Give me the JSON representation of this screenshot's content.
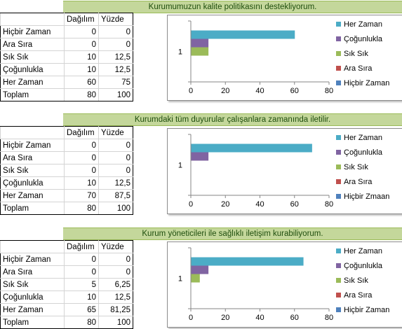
{
  "sections": [
    {
      "title": "Kurumumuzun kalite politikasını destekliyorum.",
      "headers": [
        "Dağılım",
        "Yüzde"
      ],
      "rows": [
        {
          "label": "Hiçbir Zaman",
          "count": "0",
          "pct": "0"
        },
        {
          "label": "Ara Sıra",
          "count": "0",
          "pct": "0"
        },
        {
          "label": "Sık Sık",
          "count": "10",
          "pct": "12,5"
        },
        {
          "label": "Çoğunlukla",
          "count": "10",
          "pct": "12,5"
        },
        {
          "label": "Her Zaman",
          "count": "60",
          "pct": "75"
        },
        {
          "label": "Toplam",
          "count": "80",
          "pct": "100"
        }
      ]
    },
    {
      "title": "Kurumdaki tüm duyurular çalışanlara zamanında iletilir.",
      "headers": [
        "Dağılım",
        "Yüzde"
      ],
      "rows": [
        {
          "label": "Hiçbir Zaman",
          "count": "0",
          "pct": "0"
        },
        {
          "label": "Ara Sıra",
          "count": "0",
          "pct": "0"
        },
        {
          "label": "Sık Sık",
          "count": "0",
          "pct": "0"
        },
        {
          "label": "Çoğunlukla",
          "count": "10",
          "pct": "12,5"
        },
        {
          "label": "Her Zaman",
          "count": "70",
          "pct": "87,5"
        },
        {
          "label": "Toplam",
          "count": "80",
          "pct": "100"
        }
      ]
    },
    {
      "title": "Kurum yöneticileri ile sağlıklı iletişim kurabiliyorum.",
      "headers": [
        "Dağılım",
        "Yüzde"
      ],
      "rows": [
        {
          "label": "Hiçbir Zaman",
          "count": "0",
          "pct": "0"
        },
        {
          "label": "Ara Sıra",
          "count": "0",
          "pct": "0"
        },
        {
          "label": "Sık Sık",
          "count": "5",
          "pct": "6,25"
        },
        {
          "label": "Çoğunlukla",
          "count": "10",
          "pct": "12,5"
        },
        {
          "label": "Her Zaman",
          "count": "65",
          "pct": "81,25"
        },
        {
          "label": "Toplam",
          "count": "80",
          "pct": "100"
        }
      ]
    }
  ],
  "chart_data": [
    {
      "type": "bar",
      "orientation": "horizontal",
      "categories": [
        "1"
      ],
      "xlim": [
        0,
        80
      ],
      "xticks": [
        "0",
        "20",
        "40",
        "60",
        "80"
      ],
      "grid": false,
      "legend_position": "right",
      "series": [
        {
          "name": "Hiçbir Zaman",
          "values": [
            0
          ],
          "color": "#4f81bd"
        },
        {
          "name": "Ara Sıra",
          "values": [
            0
          ],
          "color": "#c0504d"
        },
        {
          "name": "Sık Sık",
          "values": [
            10
          ],
          "color": "#9bbb59"
        },
        {
          "name": "Çoğunlukla",
          "values": [
            10
          ],
          "color": "#8064a2"
        },
        {
          "name": "Her Zaman",
          "values": [
            60
          ],
          "color": "#4bacc6"
        }
      ]
    },
    {
      "type": "bar",
      "orientation": "horizontal",
      "categories": [
        "1"
      ],
      "xlim": [
        0,
        80
      ],
      "xticks": [
        "0",
        "20",
        "40",
        "60",
        "80"
      ],
      "grid": false,
      "legend_position": "right",
      "series": [
        {
          "name": "Hiçbir Zmaan",
          "values": [
            0
          ],
          "color": "#4f81bd"
        },
        {
          "name": "Ara Sıra",
          "values": [
            0
          ],
          "color": "#c0504d"
        },
        {
          "name": "Sık Sık",
          "values": [
            0
          ],
          "color": "#9bbb59"
        },
        {
          "name": "Çoğunlukla",
          "values": [
            10
          ],
          "color": "#8064a2"
        },
        {
          "name": "Her Zaman",
          "values": [
            70
          ],
          "color": "#4bacc6"
        }
      ]
    },
    {
      "type": "bar",
      "orientation": "horizontal",
      "categories": [
        "1"
      ],
      "xlim": [
        0,
        80
      ],
      "xticks": [
        "0",
        "20",
        "40",
        "60",
        "80"
      ],
      "grid": false,
      "legend_position": "right",
      "series": [
        {
          "name": "Hiçbir Zaman",
          "values": [
            0
          ],
          "color": "#4f81bd"
        },
        {
          "name": "Ara Sıra",
          "values": [
            0
          ],
          "color": "#c0504d"
        },
        {
          "name": "Sık Sık",
          "values": [
            5
          ],
          "color": "#9bbb59"
        },
        {
          "name": "Çoğunlukla",
          "values": [
            10
          ],
          "color": "#8064a2"
        },
        {
          "name": "Her Zaman",
          "values": [
            65
          ],
          "color": "#4bacc6"
        }
      ]
    }
  ]
}
